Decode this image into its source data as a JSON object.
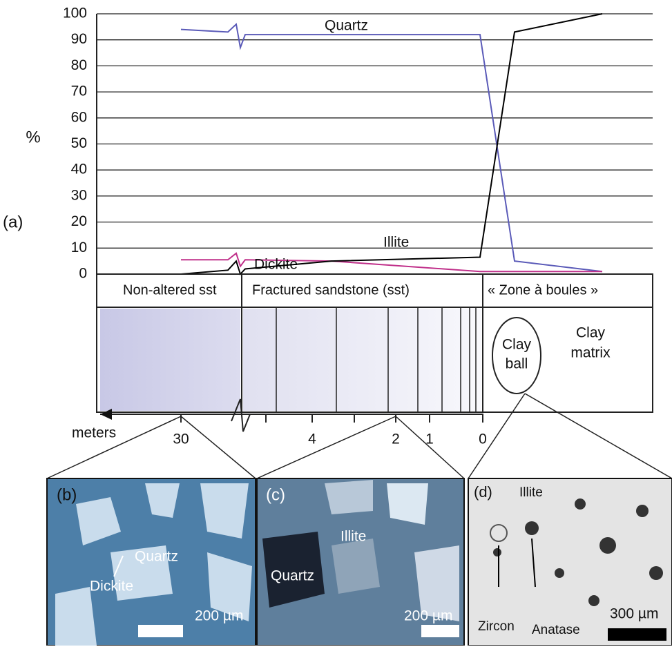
{
  "panel_label": "(a)",
  "chart_data": {
    "type": "line",
    "ylabel": "%",
    "ylim": [
      0,
      100
    ],
    "yticks": [
      0,
      10,
      20,
      30,
      40,
      50,
      60,
      70,
      80,
      90,
      100
    ],
    "grid": true,
    "series": [
      {
        "name": "Quartz",
        "color": "#5a5ab8",
        "values": [
          94,
          93,
          96,
          87,
          92,
          92,
          92,
          5,
          1
        ]
      },
      {
        "name": "Dickite",
        "color": "#c0308a",
        "values": [
          5.5,
          5.5,
          8,
          3,
          5.5,
          5,
          1,
          1,
          1
        ]
      },
      {
        "name": "Illite",
        "color": "#000000",
        "values": [
          0,
          1.5,
          5,
          0,
          2,
          5,
          6.5,
          93,
          100
        ]
      }
    ]
  },
  "zones": [
    "Non-altered sst",
    "Fractured sandstone (sst)",
    "« Zone à boules »"
  ],
  "schematic": {
    "clay_ball": [
      "Clay",
      "ball"
    ],
    "clay_matrix": [
      "Clay",
      "matrix"
    ]
  },
  "depth_axis": {
    "label": "meters",
    "ticks": [
      "30",
      "4",
      "2",
      "1",
      "0"
    ]
  },
  "micrographs": [
    {
      "label": "(b)",
      "texts": [
        "Quartz",
        "Dickite"
      ],
      "scale": "200 µm"
    },
    {
      "label": "(c)",
      "texts": [
        "Quartz",
        "Illite"
      ],
      "scale": "200 µm"
    },
    {
      "label": "(d)",
      "texts": [
        "Illite",
        "Zircon",
        "Anatase"
      ],
      "scale": "300 µm"
    }
  ]
}
